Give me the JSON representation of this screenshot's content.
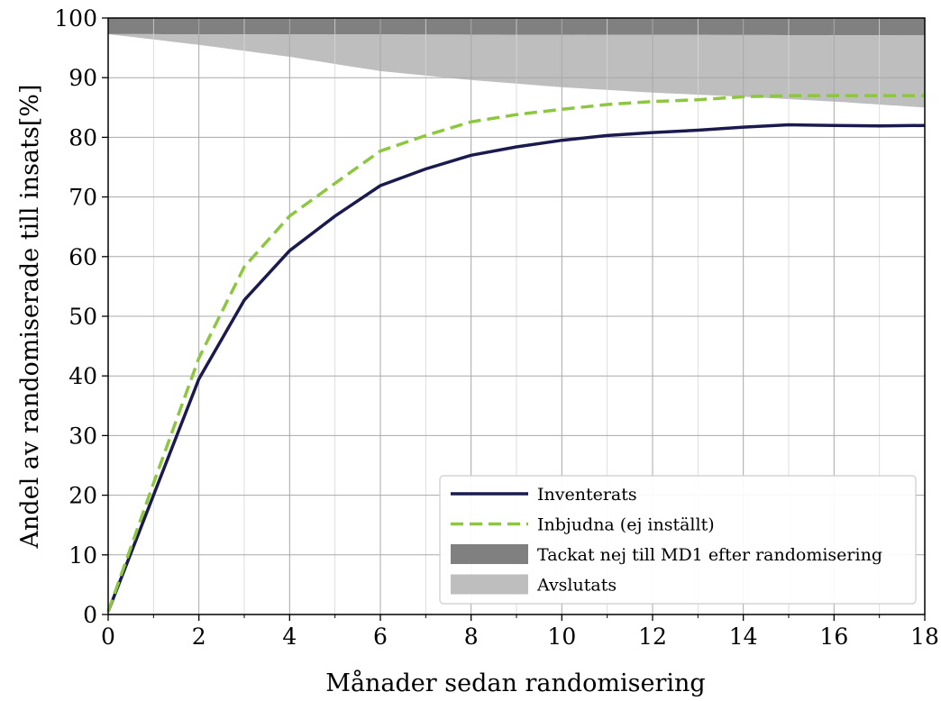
{
  "chart_data": {
    "type": "line",
    "xlabel": "Månader sedan randomisering",
    "ylabel": "Andel av randomiserade till insats[%]",
    "xlim": [
      0,
      18
    ],
    "ylim": [
      0,
      100
    ],
    "xticks": [
      0,
      2,
      4,
      6,
      8,
      10,
      12,
      14,
      16,
      18
    ],
    "yticks": [
      0,
      10,
      20,
      30,
      40,
      50,
      60,
      70,
      80,
      90,
      100
    ],
    "x_minor_step": 1,
    "grid": true,
    "legend_position": "bottom-right",
    "series": [
      {
        "name": "Inventerats",
        "style": "solid",
        "color": "#1b1a4f",
        "x": [
          0,
          1,
          2,
          3,
          4,
          5,
          6,
          7,
          8,
          9,
          10,
          11,
          12,
          13,
          14,
          15,
          16,
          17,
          18
        ],
        "y": [
          0.5,
          20,
          39.5,
          52.7,
          61,
          66.8,
          71.9,
          74.7,
          77,
          78.4,
          79.5,
          80.3,
          80.8,
          81.2,
          81.7,
          82.1,
          82,
          81.9,
          82
        ]
      },
      {
        "name": "Inbjudna (ej inställt)",
        "style": "dashed",
        "color": "#8dc63f",
        "x": [
          0,
          1,
          2,
          3,
          4,
          5,
          6,
          7,
          8,
          9,
          10,
          11,
          12,
          13,
          14,
          15,
          16,
          17,
          18
        ],
        "y": [
          0.5,
          22,
          43,
          58.3,
          66.8,
          72.3,
          77.7,
          80.3,
          82.6,
          83.8,
          84.7,
          85.5,
          86,
          86.3,
          86.8,
          87,
          87,
          87,
          87
        ]
      }
    ],
    "bands": [
      {
        "name": "Tackat nej till MD1 efter randomisering",
        "color": "#808080",
        "x": [
          0,
          18
        ],
        "lower": [
          97.3,
          97.1
        ],
        "upper": [
          100,
          100
        ]
      },
      {
        "name": "Avslutats",
        "color": "#bebebe",
        "x": [
          0,
          2,
          4,
          6,
          8,
          10,
          12,
          14,
          16,
          18
        ],
        "lower": [
          97.3,
          95.5,
          93.5,
          91.1,
          89.6,
          88.4,
          87.5,
          86.8,
          86,
          85
        ],
        "upper": [
          97.3,
          97.28,
          97.26,
          97.24,
          97.22,
          97.2,
          97.18,
          97.15,
          97.12,
          97.1
        ]
      }
    ]
  }
}
